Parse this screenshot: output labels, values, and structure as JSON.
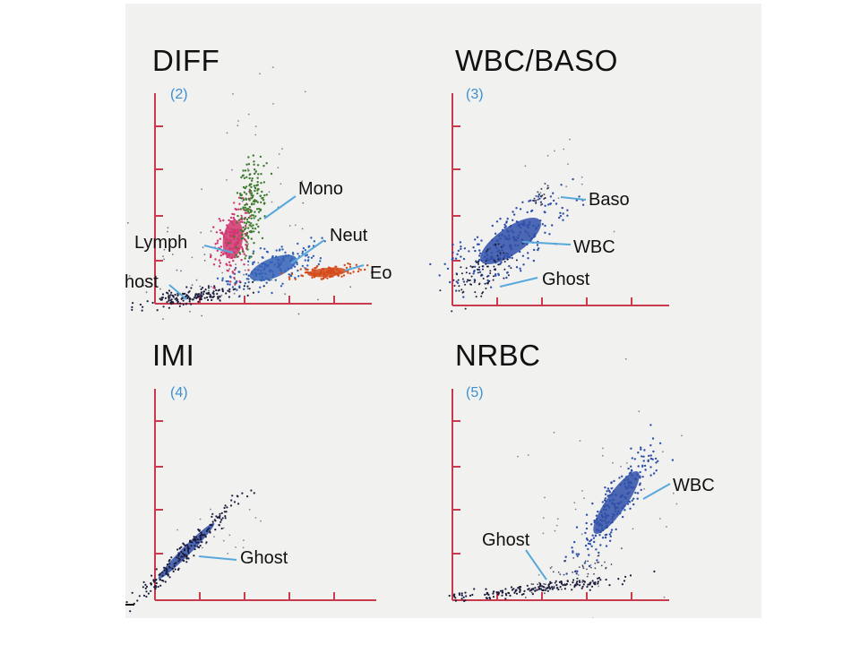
{
  "panels": [
    {
      "title": "DIFF",
      "number": "(2)",
      "labels": [
        "Mono",
        "Lymph",
        "Neut",
        "Eo",
        "host"
      ]
    },
    {
      "title": "WBC/BASO",
      "number": "(3)",
      "labels": [
        "Baso",
        "WBC",
        "Ghost"
      ]
    },
    {
      "title": "IMI",
      "number": "(4)",
      "labels": [
        "Ghost"
      ]
    },
    {
      "title": "NRBC",
      "number": "(5)",
      "labels": [
        "WBC",
        "Ghost"
      ]
    }
  ],
  "colors": {
    "axis": "#c83a4c",
    "leader": "#58a8db",
    "number": "#3d8fd1",
    "lymph": "#d0356e",
    "mono": "#3f7a2d",
    "neut": "#3460b6",
    "eo": "#d44a18",
    "cluster_blue": "#2f4fa8",
    "ghost": "#1c1c3c"
  }
}
